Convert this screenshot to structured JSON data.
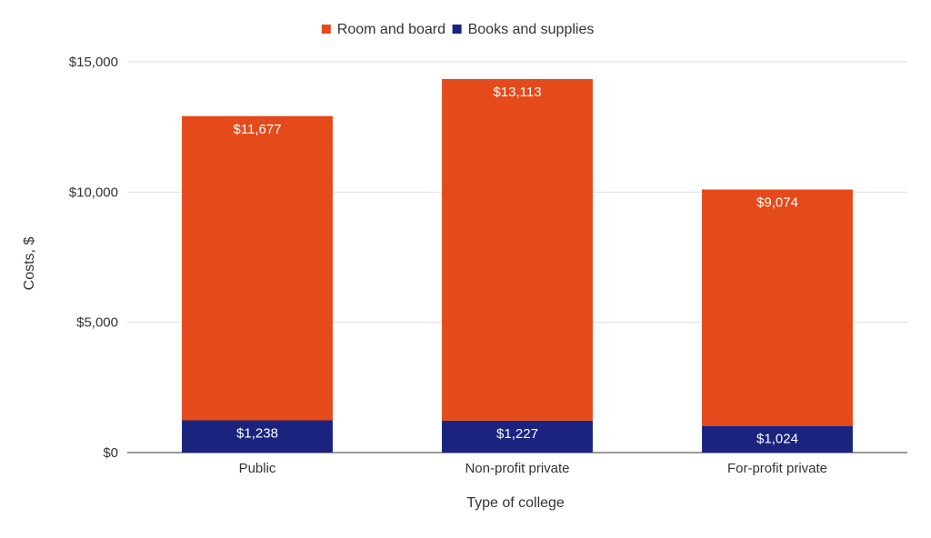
{
  "chart_data": {
    "type": "bar",
    "stacked": true,
    "title": "",
    "xlabel": "Type of college",
    "ylabel": "Costs, $",
    "categories": [
      "Public",
      "Non-profit private",
      "For-profit private"
    ],
    "series": [
      {
        "name": "Books and supplies",
        "color": "#1a237e",
        "values": [
          1238,
          1227,
          1024
        ],
        "labels": [
          "$1,238",
          "$1,227",
          "$1,024"
        ]
      },
      {
        "name": "Room and board",
        "color": "#e44a1a",
        "values": [
          11677,
          13113,
          9074
        ],
        "labels": [
          "$11,677",
          "$13,113",
          "$9,074"
        ]
      }
    ],
    "legend": {
      "position": "top-center",
      "order": [
        "Room and board",
        "Books and supplies"
      ]
    },
    "ylim": [
      0,
      15000
    ],
    "yticks": [
      0,
      5000,
      10000,
      15000
    ],
    "ytick_labels": [
      "$0",
      "$5,000",
      "$10,000",
      "$15,000"
    ],
    "grid": true
  }
}
